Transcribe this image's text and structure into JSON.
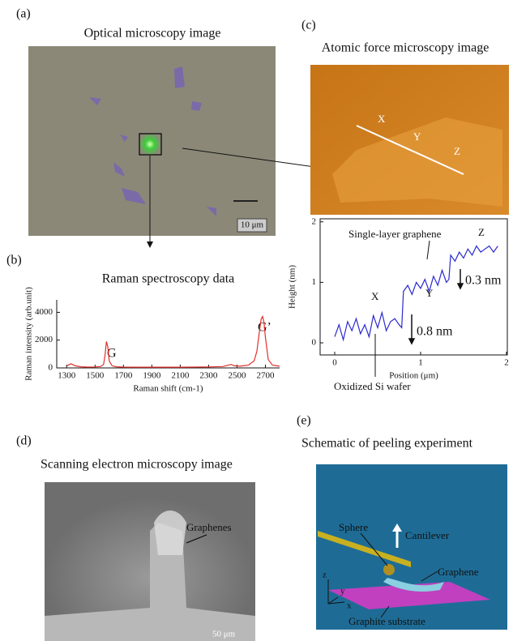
{
  "panels": {
    "a": {
      "label": "(a)",
      "title": "Optical microscopy image",
      "scale": "10 μm"
    },
    "b": {
      "label": "(b)"
    },
    "c": {
      "label": "(c)",
      "title": "Atomic force microscopy image",
      "line_labels": [
        "X",
        "Y",
        "Z"
      ]
    },
    "d": {
      "label": "(d)",
      "title": "Scanning electron microscopy image",
      "callout": "Graphenes",
      "scale": "50 μm"
    },
    "e": {
      "label": "(e)",
      "title": "Schematic of peeling experiment",
      "callouts": [
        "Sphere",
        "Cantilever",
        "Graphene",
        "Graphite substrate"
      ],
      "axes": [
        "z",
        "y",
        "x"
      ]
    }
  },
  "chart_data": [
    {
      "type": "line",
      "title": "Raman spectroscopy data",
      "x_label": "Raman shift (cm-1)",
      "y_label": "Raman intensity (arb.unit)",
      "color": "#e0302a",
      "annotations": [
        "G",
        "G’"
      ],
      "x": [
        1300,
        1330,
        1360,
        1400,
        1450,
        1500,
        1540,
        1560,
        1570,
        1580,
        1590,
        1600,
        1620,
        1650,
        1700,
        1800,
        1900,
        2000,
        2100,
        2200,
        2300,
        2400,
        2440,
        2460,
        2480,
        2520,
        2580,
        2620,
        2640,
        2660,
        2670,
        2680,
        2690,
        2700,
        2720,
        2750,
        2800
      ],
      "values": [
        150,
        300,
        150,
        80,
        60,
        70,
        100,
        250,
        900,
        1900,
        1500,
        500,
        150,
        80,
        60,
        50,
        50,
        50,
        50,
        60,
        70,
        100,
        200,
        250,
        150,
        120,
        200,
        500,
        1200,
        2800,
        3500,
        3700,
        3300,
        2200,
        600,
        200,
        120
      ],
      "xlim": [
        1230,
        2800
      ],
      "xticks": [
        1300,
        1500,
        1700,
        1900,
        2100,
        2300,
        2500,
        2700
      ],
      "ylim": [
        0,
        4900
      ],
      "yticks": [
        0,
        2000,
        4000
      ]
    },
    {
      "type": "line",
      "x_label": "Position (μm)",
      "y_label": "Height (nm)",
      "color": "#2a2ad0",
      "annotations": [
        "Single-layer graphene",
        "X",
        "Y",
        "Z",
        "0.8 nm",
        "0.3 nm",
        "Oxidized Si wafer"
      ],
      "x": [
        0,
        0.05,
        0.1,
        0.15,
        0.2,
        0.25,
        0.3,
        0.35,
        0.4,
        0.45,
        0.5,
        0.55,
        0.6,
        0.65,
        0.7,
        0.75,
        0.78,
        0.8,
        0.85,
        0.9,
        0.95,
        1.0,
        1.05,
        1.1,
        1.15,
        1.2,
        1.25,
        1.3,
        1.33,
        1.35,
        1.4,
        1.45,
        1.5,
        1.55,
        1.6,
        1.65,
        1.7,
        1.75,
        1.8,
        1.85,
        1.9
      ],
      "values": [
        0.1,
        0.3,
        0.05,
        0.35,
        0.2,
        0.4,
        0.15,
        0.3,
        0.1,
        0.45,
        0.25,
        0.5,
        0.2,
        0.35,
        0.4,
        0.3,
        0.25,
        0.85,
        0.95,
        0.8,
        1.0,
        0.9,
        1.05,
        0.85,
        1.1,
        0.95,
        1.2,
        1.0,
        1.05,
        1.45,
        1.35,
        1.5,
        1.4,
        1.55,
        1.45,
        1.6,
        1.5,
        1.55,
        1.6,
        1.5,
        1.6
      ],
      "xlim": [
        -0.17,
        2.01
      ],
      "xticks": [
        0,
        1,
        2
      ],
      "ylim": [
        -0.2,
        2.05
      ],
      "yticks": [
        0,
        1,
        2
      ]
    }
  ]
}
